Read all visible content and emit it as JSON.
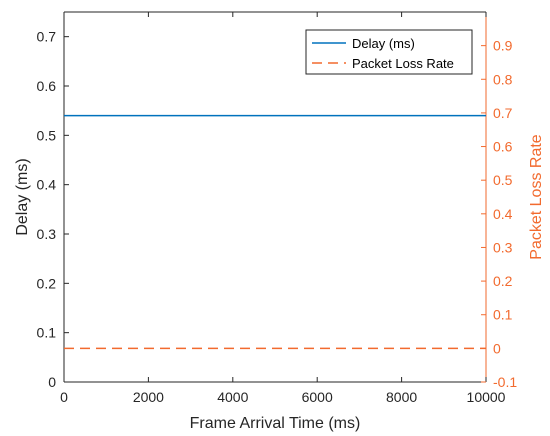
{
  "chart_data": {
    "type": "line",
    "xlabel": "Frame Arrival Time (ms)",
    "ylabel_left": "Delay (ms)",
    "ylabel_right": "Packet Loss Rate",
    "xlim": [
      0,
      10000
    ],
    "ylim_left": [
      0,
      0.75
    ],
    "ylim_right": [
      -0.1,
      1.0
    ],
    "xticks": [
      0,
      2000,
      4000,
      6000,
      8000,
      10000
    ],
    "yticks_left": [
      0,
      0.1,
      0.2,
      0.3,
      0.4,
      0.5,
      0.6,
      0.7
    ],
    "yticks_right": [
      -0.1,
      0,
      0.1,
      0.2,
      0.3,
      0.4,
      0.5,
      0.6,
      0.7,
      0.8,
      0.9
    ],
    "grid": false,
    "legend_position": "top-right",
    "series": [
      {
        "name": "Delay (ms)",
        "axis": "left",
        "style": "solid",
        "color": "#0072BD",
        "x": [
          0,
          10000
        ],
        "y": [
          0.54,
          0.54
        ]
      },
      {
        "name": "Packet Loss Rate",
        "axis": "right",
        "style": "dashed",
        "color": "#F26A2E",
        "x": [
          0,
          10000
        ],
        "y": [
          0,
          0
        ]
      }
    ]
  }
}
